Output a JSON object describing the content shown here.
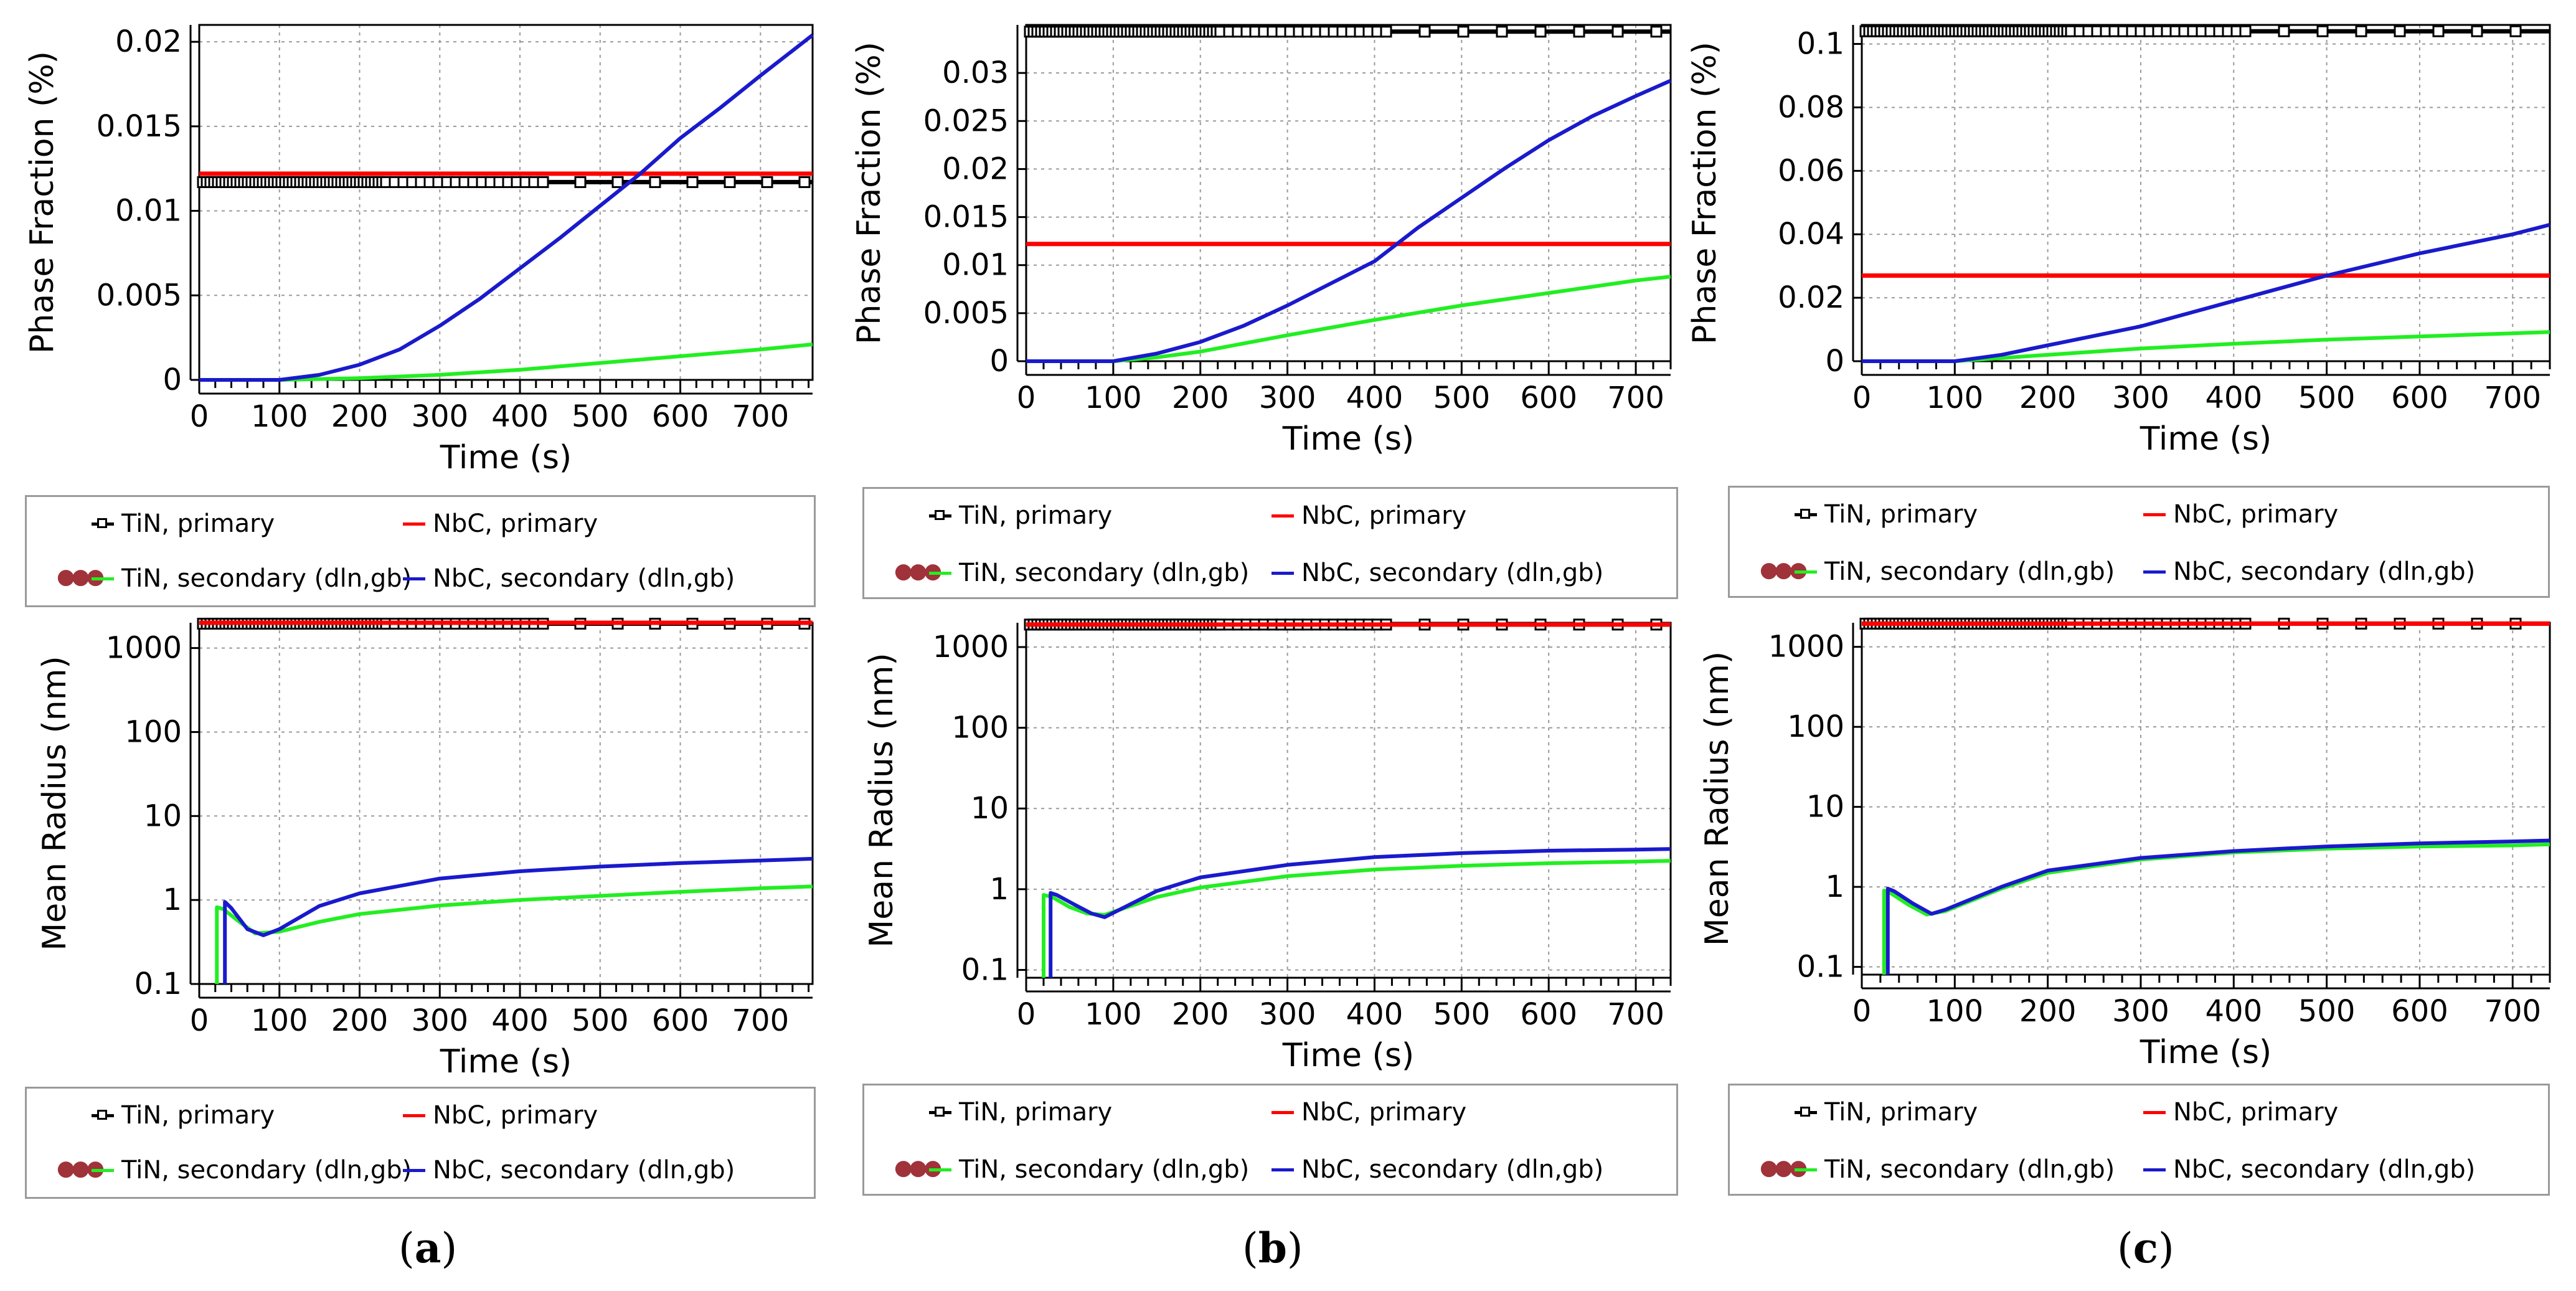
{
  "legend_labels": {
    "tin_primary": "TiN, primary",
    "nbc_primary": "NbC, primary",
    "tin_secondary": "TiN, secondary (dln,gb)",
    "nbc_secondary": "NbC, secondary (dln,gb)"
  },
  "colors": {
    "tin_primary": "#000000",
    "nbc_primary": "#ff0000",
    "tin_secondary": "#22ee22",
    "nbc_secondary": "#1a1acc"
  },
  "captions": [
    {
      "open": "(",
      "letter": "a",
      "close": ")"
    },
    {
      "open": "(",
      "letter": "b",
      "close": ")"
    },
    {
      "open": "(",
      "letter": "c",
      "close": ")"
    }
  ],
  "chart_data": [
    {
      "id": "a-phase",
      "type": "line",
      "scale": "linear",
      "xlabel": "Time (s)",
      "ylabel": "Phase Fraction (%)",
      "xlim": [
        0,
        765
      ],
      "ylim": [
        0,
        0.021
      ],
      "xticks": [
        0,
        100,
        200,
        300,
        400,
        500,
        600,
        700
      ],
      "yticks": [
        0,
        0.005,
        0.01,
        0.015,
        0.02
      ],
      "yticklabels": [
        "0",
        "0.005",
        "0.01",
        "0.015",
        "0.02"
      ],
      "series": [
        {
          "key": "tin_primary",
          "name": "TiN, primary",
          "marker": "square",
          "x": [
            0,
            765
          ],
          "y": [
            0.0117,
            0.0117
          ]
        },
        {
          "key": "nbc_primary",
          "name": "NbC, primary",
          "x": [
            0,
            765
          ],
          "y": [
            0.0122,
            0.0122
          ]
        },
        {
          "key": "tin_secondary",
          "name": "TiN, secondary (dln,gb)",
          "x": [
            0,
            100,
            200,
            300,
            400,
            500,
            600,
            700,
            765
          ],
          "y": [
            0,
            0,
            0.0001,
            0.0003,
            0.0006,
            0.001,
            0.0014,
            0.0018,
            0.0021
          ]
        },
        {
          "key": "nbc_secondary",
          "name": "NbC, secondary (dln,gb)",
          "x": [
            0,
            100,
            150,
            200,
            250,
            300,
            350,
            400,
            450,
            500,
            550,
            600,
            650,
            700,
            765
          ],
          "y": [
            0,
            0,
            0.0003,
            0.0009,
            0.0018,
            0.0032,
            0.0048,
            0.0066,
            0.0084,
            0.0103,
            0.0122,
            0.0143,
            0.0161,
            0.018,
            0.0204
          ]
        }
      ]
    },
    {
      "id": "b-phase",
      "type": "line",
      "scale": "linear",
      "xlabel": "Time (s)",
      "ylabel": "Phase Fraction (%)",
      "xlim": [
        0,
        740
      ],
      "ylim": [
        0,
        0.035
      ],
      "xticks": [
        0,
        100,
        200,
        300,
        400,
        500,
        600,
        700
      ],
      "yticks": [
        0,
        0.005,
        0.01,
        0.015,
        0.02,
        0.025,
        0.03
      ],
      "yticklabels": [
        "0",
        "0.005",
        "0.01",
        "0.015",
        "0.02",
        "0.025",
        "0.03"
      ],
      "series": [
        {
          "key": "tin_primary",
          "name": "TiN, primary",
          "marker": "square",
          "x": [
            0,
            740
          ],
          "y": [
            0.0343,
            0.0343
          ]
        },
        {
          "key": "nbc_primary",
          "name": "NbC, primary",
          "x": [
            0,
            740
          ],
          "y": [
            0.0122,
            0.0122
          ]
        },
        {
          "key": "tin_secondary",
          "name": "TiN, secondary (dln,gb)",
          "x": [
            0,
            100,
            150,
            200,
            300,
            400,
            500,
            600,
            700,
            740
          ],
          "y": [
            0,
            0,
            0.0004,
            0.001,
            0.0027,
            0.0043,
            0.0058,
            0.0071,
            0.0084,
            0.0088
          ]
        },
        {
          "key": "nbc_secondary",
          "name": "NbC, secondary (dln,gb)",
          "x": [
            0,
            100,
            150,
            200,
            250,
            300,
            350,
            400,
            450,
            500,
            550,
            600,
            650,
            700,
            740
          ],
          "y": [
            0,
            0,
            0.0008,
            0.002,
            0.0037,
            0.0058,
            0.0081,
            0.0104,
            0.0139,
            0.017,
            0.0201,
            0.023,
            0.0255,
            0.0276,
            0.0292
          ]
        }
      ]
    },
    {
      "id": "c-phase",
      "type": "line",
      "scale": "linear",
      "xlabel": "Time (s)",
      "ylabel": "Phase Fraction (%)",
      "xlim": [
        0,
        740
      ],
      "ylim": [
        0,
        0.106
      ],
      "xticks": [
        0,
        100,
        200,
        300,
        400,
        500,
        600,
        700
      ],
      "yticks": [
        0,
        0.02,
        0.04,
        0.06,
        0.08,
        0.1
      ],
      "yticklabels": [
        "0",
        "0.02",
        "0.04",
        "0.06",
        "0.08",
        "0.1"
      ],
      "series": [
        {
          "key": "tin_primary",
          "name": "TiN, primary",
          "marker": "square",
          "x": [
            0,
            740
          ],
          "y": [
            0.104,
            0.104
          ]
        },
        {
          "key": "nbc_primary",
          "name": "NbC, primary",
          "x": [
            0,
            740
          ],
          "y": [
            0.027,
            0.027
          ]
        },
        {
          "key": "tin_secondary",
          "name": "TiN, secondary (dln,gb)",
          "x": [
            0,
            100,
            150,
            200,
            300,
            400,
            500,
            600,
            700,
            740
          ],
          "y": [
            0,
            0,
            0.001,
            0.002,
            0.004,
            0.0055,
            0.0068,
            0.0078,
            0.0088,
            0.0092
          ]
        },
        {
          "key": "nbc_secondary",
          "name": "NbC, secondary (dln,gb)",
          "x": [
            0,
            100,
            150,
            200,
            300,
            400,
            500,
            600,
            700,
            740
          ],
          "y": [
            0,
            0,
            0.002,
            0.005,
            0.011,
            0.019,
            0.027,
            0.034,
            0.04,
            0.043
          ]
        }
      ]
    },
    {
      "id": "a-radius",
      "type": "line",
      "scale": "log",
      "xlabel": "Time (s)",
      "ylabel": "Mean Radius (nm)",
      "xlim": [
        0,
        765
      ],
      "ylim": [
        0.1,
        2000
      ],
      "xticks": [
        0,
        100,
        200,
        300,
        400,
        500,
        600,
        700
      ],
      "yticks": [
        0.1,
        1,
        10,
        100,
        1000
      ],
      "yticklabels": [
        "0.1",
        "1",
        "10",
        "100",
        "1000"
      ],
      "series": [
        {
          "key": "tin_primary",
          "name": "TiN, primary",
          "marker": "square",
          "x": [
            0,
            765
          ],
          "y": [
            1950,
            1950
          ]
        },
        {
          "key": "nbc_primary",
          "name": "NbC, primary",
          "x": [
            0,
            765
          ],
          "y": [
            2000,
            2000
          ]
        },
        {
          "key": "tin_secondary",
          "name": "TiN, secondary (dln,gb)",
          "x": [
            22,
            22,
            30,
            50,
            70,
            100,
            150,
            200,
            300,
            400,
            500,
            600,
            700,
            765
          ],
          "y": [
            0.1,
            0.82,
            0.78,
            0.55,
            0.4,
            0.42,
            0.55,
            0.68,
            0.86,
            1.0,
            1.12,
            1.25,
            1.38,
            1.45
          ]
        },
        {
          "key": "nbc_secondary",
          "name": "NbC, secondary (dln,gb)",
          "x": [
            32,
            32,
            40,
            60,
            80,
            100,
            150,
            200,
            300,
            400,
            500,
            600,
            700,
            765
          ],
          "y": [
            0.1,
            0.95,
            0.8,
            0.45,
            0.38,
            0.45,
            0.85,
            1.2,
            1.8,
            2.2,
            2.5,
            2.75,
            2.95,
            3.1
          ]
        }
      ]
    },
    {
      "id": "b-radius",
      "type": "line",
      "scale": "log",
      "xlabel": "Time (s)",
      "ylabel": "Mean Radius (nm)",
      "xlim": [
        0,
        740
      ],
      "ylim": [
        0.08,
        2000
      ],
      "xticks": [
        0,
        100,
        200,
        300,
        400,
        500,
        600,
        700
      ],
      "yticks": [
        0.1,
        1,
        10,
        100,
        1000
      ],
      "yticklabels": [
        "0.1",
        "1",
        "10",
        "100",
        "1000"
      ],
      "series": [
        {
          "key": "tin_primary",
          "name": "TiN, primary",
          "marker": "square",
          "x": [
            0,
            740
          ],
          "y": [
            1900,
            1900
          ]
        },
        {
          "key": "nbc_primary",
          "name": "NbC, primary",
          "x": [
            0,
            740
          ],
          "y": [
            1900,
            1900
          ]
        },
        {
          "key": "tin_secondary",
          "name": "TiN, secondary (dln,gb)",
          "x": [
            20,
            20,
            30,
            50,
            70,
            90,
            150,
            200,
            300,
            400,
            500,
            600,
            700,
            740
          ],
          "y": [
            0.08,
            0.85,
            0.8,
            0.6,
            0.5,
            0.48,
            0.8,
            1.05,
            1.45,
            1.75,
            1.95,
            2.1,
            2.2,
            2.25
          ]
        },
        {
          "key": "nbc_secondary",
          "name": "NbC, secondary (dln,gb)",
          "x": [
            28,
            28,
            35,
            55,
            75,
            90,
            150,
            200,
            300,
            400,
            500,
            600,
            700,
            740
          ],
          "y": [
            0.08,
            0.9,
            0.85,
            0.65,
            0.5,
            0.45,
            0.95,
            1.4,
            2.0,
            2.5,
            2.8,
            3.0,
            3.1,
            3.15
          ]
        }
      ]
    },
    {
      "id": "c-radius",
      "type": "line",
      "scale": "log",
      "xlabel": "Time (s)",
      "ylabel": "Mean Radius (nm)",
      "xlim": [
        0,
        740
      ],
      "ylim": [
        0.08,
        2000
      ],
      "xticks": [
        0,
        100,
        200,
        300,
        400,
        500,
        600,
        700
      ],
      "yticks": [
        0.1,
        1,
        10,
        100,
        1000
      ],
      "yticklabels": [
        "0.1",
        "1",
        "10",
        "100",
        "1000"
      ],
      "series": [
        {
          "key": "tin_primary",
          "name": "TiN, primary",
          "marker": "square",
          "x": [
            0,
            740
          ],
          "y": [
            1950,
            1950
          ]
        },
        {
          "key": "nbc_primary",
          "name": "NbC, primary",
          "x": [
            0,
            740
          ],
          "y": [
            1950,
            1950
          ]
        },
        {
          "key": "tin_secondary",
          "name": "TiN, secondary (dln,gb)",
          "x": [
            24,
            24,
            30,
            50,
            70,
            90,
            150,
            200,
            300,
            400,
            500,
            600,
            700,
            740
          ],
          "y": [
            0.08,
            0.9,
            0.85,
            0.6,
            0.45,
            0.5,
            0.95,
            1.5,
            2.2,
            2.7,
            3.0,
            3.2,
            3.3,
            3.4
          ]
        },
        {
          "key": "nbc_secondary",
          "name": "NbC, secondary (dln,gb)",
          "x": [
            28,
            28,
            35,
            55,
            75,
            90,
            150,
            200,
            300,
            400,
            500,
            600,
            700,
            740
          ],
          "y": [
            0.08,
            0.95,
            0.88,
            0.62,
            0.46,
            0.52,
            1.0,
            1.6,
            2.3,
            2.8,
            3.2,
            3.5,
            3.7,
            3.8
          ]
        }
      ]
    }
  ]
}
